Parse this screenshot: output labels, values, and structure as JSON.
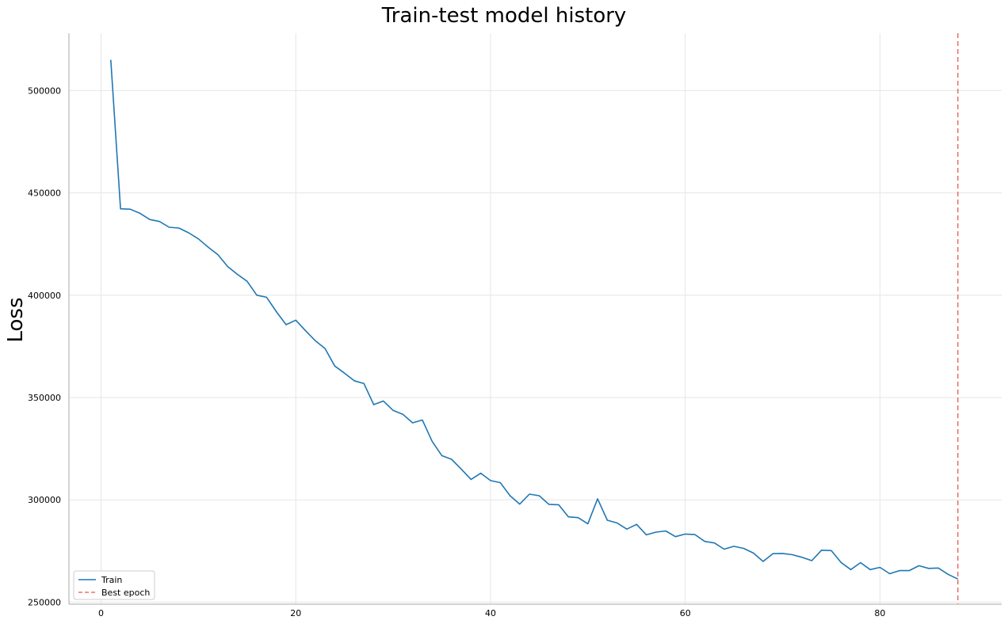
{
  "chart_data": {
    "type": "line",
    "title": "Train-test model history",
    "xlabel": "",
    "ylabel": "Loss",
    "xlim": [
      -3.3,
      92.5
    ],
    "ylim": [
      249000,
      528000
    ],
    "xticks": [
      0,
      20,
      40,
      60,
      80
    ],
    "yticks": [
      250000,
      300000,
      350000,
      400000,
      450000,
      500000
    ],
    "grid": true,
    "legend_position": "lower-left",
    "colors": {
      "train": "#1f77b4",
      "best_epoch": "#e8736c",
      "grid": "#e6e6e6",
      "axis": "#aaaaaa"
    },
    "series": [
      {
        "name": "Train",
        "style": "solid",
        "x": [
          1,
          2,
          3,
          4,
          5,
          6,
          7,
          8,
          9,
          10,
          11,
          12,
          13,
          14,
          15,
          16,
          17,
          18,
          19,
          20,
          21,
          22,
          23,
          24,
          25,
          26,
          27,
          28,
          29,
          30,
          31,
          32,
          33,
          34,
          35,
          36,
          37,
          38,
          39,
          40,
          41,
          42,
          43,
          44,
          45,
          46,
          47,
          48,
          49,
          50,
          51,
          52,
          53,
          54,
          55,
          56,
          57,
          58,
          59,
          60,
          61,
          62,
          63,
          64,
          65,
          66,
          67,
          68,
          69,
          70,
          71,
          72,
          73,
          74,
          75,
          76,
          77,
          78,
          79,
          80,
          81,
          82,
          83,
          84,
          85,
          86,
          87,
          88
        ],
        "y": [
          515000,
          442200,
          442000,
          440000,
          437000,
          436000,
          433200,
          432800,
          430500,
          427500,
          423500,
          419800,
          414000,
          410200,
          406800,
          400000,
          399000,
          392000,
          385600,
          387800,
          382600,
          377800,
          374000,
          365400,
          361900,
          358200,
          356800,
          346500,
          348300,
          343700,
          341800,
          337600,
          339000,
          328600,
          321600,
          319800,
          315000,
          310000,
          313000,
          309400,
          308400,
          302000,
          297900,
          302800,
          302000,
          297800,
          297600,
          291700,
          291300,
          288300,
          300500,
          290000,
          288700,
          285700,
          288000,
          282900,
          284200,
          284800,
          282000,
          283300,
          283000,
          279700,
          278900,
          275900,
          277300,
          276300,
          274000,
          269900,
          273700,
          273800,
          273200,
          271900,
          270300,
          275400,
          275200,
          269400,
          265900,
          269300,
          265900,
          267000,
          263900,
          265400,
          265400,
          267800,
          266500,
          266700,
          263600,
          261300
        ]
      },
      {
        "name": "Best epoch",
        "style": "dashed",
        "vline_x": 88
      }
    ]
  }
}
